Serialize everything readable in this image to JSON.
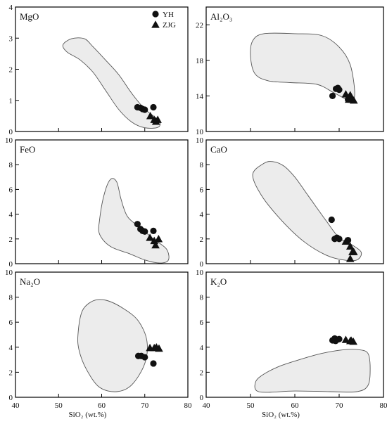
{
  "chart_data": [
    {
      "type": "scatter",
      "title": "MgO",
      "xlim": [
        40,
        80
      ],
      "ylim": [
        0,
        4
      ],
      "yticks": [
        0,
        1,
        2,
        3,
        4
      ],
      "region": [
        [
          51,
          2.78
        ],
        [
          53,
          2.98
        ],
        [
          56,
          2.98
        ],
        [
          58,
          2.72
        ],
        [
          61,
          2.28
        ],
        [
          64,
          1.82
        ],
        [
          67,
          1.22
        ],
        [
          70,
          0.72
        ],
        [
          72,
          0.5
        ],
        [
          73.5,
          0.3
        ],
        [
          73,
          0.13
        ],
        [
          70,
          0.12
        ],
        [
          67,
          0.3
        ],
        [
          64,
          0.7
        ],
        [
          61,
          1.3
        ],
        [
          58,
          1.9
        ],
        [
          55,
          2.3
        ],
        [
          52,
          2.55
        ]
      ],
      "series": [
        {
          "name": "YH",
          "marker": "circle",
          "points": [
            [
              68.3,
              0.78
            ],
            [
              69,
              0.76
            ],
            [
              69.5,
              0.72
            ],
            [
              70,
              0.7
            ],
            [
              72,
              0.78
            ]
          ]
        },
        {
          "name": "ZJG",
          "marker": "triangle",
          "points": [
            [
              71.3,
              0.5
            ],
            [
              72.2,
              0.38
            ],
            [
              73,
              0.38
            ],
            [
              72.6,
              0.32
            ]
          ]
        }
      ]
    },
    {
      "type": "scatter",
      "title": "Al₂O₃",
      "xlim": [
        40,
        80
      ],
      "ylim": [
        10,
        24
      ],
      "yticks": [
        10,
        14,
        18,
        22
      ],
      "region": [
        [
          50,
          18.5
        ],
        [
          50.5,
          20.2
        ],
        [
          53,
          21
        ],
        [
          60,
          21
        ],
        [
          66,
          20.8
        ],
        [
          70,
          19.5
        ],
        [
          72.5,
          17.5
        ],
        [
          73.5,
          14.3
        ],
        [
          72.5,
          13.5
        ],
        [
          69,
          14.3
        ],
        [
          65,
          15.3
        ],
        [
          59,
          15.5
        ],
        [
          54,
          15.7
        ],
        [
          51,
          16.5
        ]
      ],
      "series": [
        {
          "name": "YH",
          "marker": "circle",
          "points": [
            [
              68.5,
              14
            ],
            [
              69.3,
              14.8
            ],
            [
              69.7,
              14.9
            ],
            [
              70,
              14.7
            ],
            [
              72,
              13.6
            ]
          ]
        },
        {
          "name": "ZJG",
          "marker": "triangle",
          "points": [
            [
              71.5,
              14.2
            ],
            [
              72.5,
              14.1
            ],
            [
              73,
              13.6
            ],
            [
              72.2,
              13.6
            ],
            [
              73.3,
              13.5
            ]
          ]
        }
      ]
    },
    {
      "type": "scatter",
      "title": "FeO",
      "xlim": [
        40,
        80
      ],
      "ylim": [
        0,
        10
      ],
      "yticks": [
        0,
        2,
        4,
        6,
        8,
        10
      ],
      "region": [
        [
          59.5,
          3.5
        ],
        [
          60.5,
          5.5
        ],
        [
          62,
          6.8
        ],
        [
          63.5,
          6.6
        ],
        [
          64.5,
          5.2
        ],
        [
          66,
          3.8
        ],
        [
          69,
          2.9
        ],
        [
          72,
          2
        ],
        [
          75,
          1.2
        ],
        [
          75.5,
          0.3
        ],
        [
          73.5,
          0.05
        ],
        [
          70,
          0.3
        ],
        [
          66.5,
          0.8
        ],
        [
          62,
          1.4
        ],
        [
          59.5,
          2.4
        ]
      ],
      "series": [
        {
          "name": "YH",
          "marker": "circle",
          "points": [
            [
              68.3,
              3.2
            ],
            [
              69,
              2.8
            ],
            [
              69.5,
              2.65
            ],
            [
              70,
              2.6
            ],
            [
              72,
              2.65
            ]
          ]
        },
        {
          "name": "ZJG",
          "marker": "triangle",
          "points": [
            [
              71.2,
              2.1
            ],
            [
              72.2,
              1.85
            ],
            [
              73.2,
              2.0
            ],
            [
              72.5,
              1.5
            ]
          ]
        }
      ]
    },
    {
      "type": "scatter",
      "title": "CaO",
      "xlim": [
        40,
        80
      ],
      "ylim": [
        0,
        10
      ],
      "yticks": [
        0,
        2,
        4,
        6,
        8,
        10
      ],
      "region": [
        [
          50.5,
          7.2
        ],
        [
          53,
          8.1
        ],
        [
          55,
          8.25
        ],
        [
          57.5,
          7.9
        ],
        [
          60,
          7
        ],
        [
          63,
          5.5
        ],
        [
          67,
          3.5
        ],
        [
          70,
          2.1
        ],
        [
          73,
          1.5
        ],
        [
          75,
          0.9
        ],
        [
          74,
          0.3
        ],
        [
          71,
          0.3
        ],
        [
          67,
          0.7
        ],
        [
          62,
          1.8
        ],
        [
          57,
          3.5
        ],
        [
          52.5,
          5.5
        ]
      ],
      "series": [
        {
          "name": "YH",
          "marker": "circle",
          "points": [
            [
              68.3,
              3.55
            ],
            [
              69,
              2.0
            ],
            [
              69.5,
              2.1
            ],
            [
              70,
              2.0
            ],
            [
              72,
              1.9
            ]
          ]
        },
        {
          "name": "ZJG",
          "marker": "triangle",
          "points": [
            [
              71.5,
              1.8
            ],
            [
              72.5,
              1.4
            ],
            [
              73,
              0.95
            ],
            [
              72.5,
              0.4
            ],
            [
              73.3,
              0.95
            ]
          ]
        }
      ]
    },
    {
      "type": "scatter",
      "title": "Na₂O",
      "xlim": [
        40,
        80
      ],
      "ylim": [
        0,
        10
      ],
      "yticks": [
        0,
        2,
        4,
        6,
        8,
        10
      ],
      "region": [
        [
          54.5,
          5
        ],
        [
          55.5,
          6.9
        ],
        [
          58,
          7.7
        ],
        [
          61,
          7.75
        ],
        [
          65,
          7.1
        ],
        [
          68.5,
          6.1
        ],
        [
          70.5,
          4.5
        ],
        [
          70,
          2.7
        ],
        [
          67,
          1
        ],
        [
          63.5,
          0.45
        ],
        [
          59.5,
          0.8
        ],
        [
          56.5,
          2.2
        ],
        [
          54.8,
          3.7
        ]
      ],
      "series": [
        {
          "name": "YH",
          "marker": "circle",
          "points": [
            [
              68.5,
              3.3
            ],
            [
              69.2,
              3.3
            ],
            [
              70,
              3.2
            ],
            [
              72,
              2.7
            ]
          ]
        },
        {
          "name": "ZJG",
          "marker": "triangle",
          "points": [
            [
              71.2,
              3.95
            ],
            [
              72.2,
              3.95
            ],
            [
              73.3,
              3.9
            ],
            [
              72.7,
              4.0
            ]
          ]
        }
      ]
    },
    {
      "type": "scatter",
      "title": "K₂O",
      "xlim": [
        40,
        80
      ],
      "ylim": [
        0,
        10
      ],
      "yticks": [
        0,
        2,
        4,
        6,
        8,
        10
      ],
      "region": [
        [
          51,
          1.0
        ],
        [
          52,
          1.6
        ],
        [
          56,
          2.4
        ],
        [
          61,
          3.0
        ],
        [
          66,
          3.5
        ],
        [
          71,
          3.8
        ],
        [
          74.5,
          3.8
        ],
        [
          76.5,
          3.5
        ],
        [
          77,
          2.3
        ],
        [
          76.5,
          0.95
        ],
        [
          74,
          0.45
        ],
        [
          68,
          0.45
        ],
        [
          60,
          0.5
        ],
        [
          54,
          0.4
        ],
        [
          51.5,
          0.5
        ]
      ],
      "series": [
        {
          "name": "YH",
          "marker": "circle",
          "points": [
            [
              68.5,
              4.55
            ],
            [
              69,
              4.7
            ],
            [
              69.5,
              4.6
            ],
            [
              70,
              4.65
            ],
            [
              69.2,
              4.5
            ]
          ]
        },
        {
          "name": "ZJG",
          "marker": "triangle",
          "points": [
            [
              71.5,
              4.6
            ],
            [
              72.5,
              4.5
            ],
            [
              73.2,
              4.45
            ],
            [
              72.7,
              4.55
            ]
          ]
        }
      ]
    }
  ],
  "legend": {
    "entries": [
      {
        "label": "YH",
        "marker": "circle"
      },
      {
        "label": "ZJG",
        "marker": "triangle"
      }
    ]
  },
  "x_axis": {
    "ticks": [
      40,
      50,
      60,
      70,
      80
    ],
    "title": "SiO₂ (wt.%)"
  },
  "colors": {
    "region_fill": "#ececec",
    "region_stroke": "#555555",
    "marker": "#111111",
    "frame": "#000000"
  }
}
